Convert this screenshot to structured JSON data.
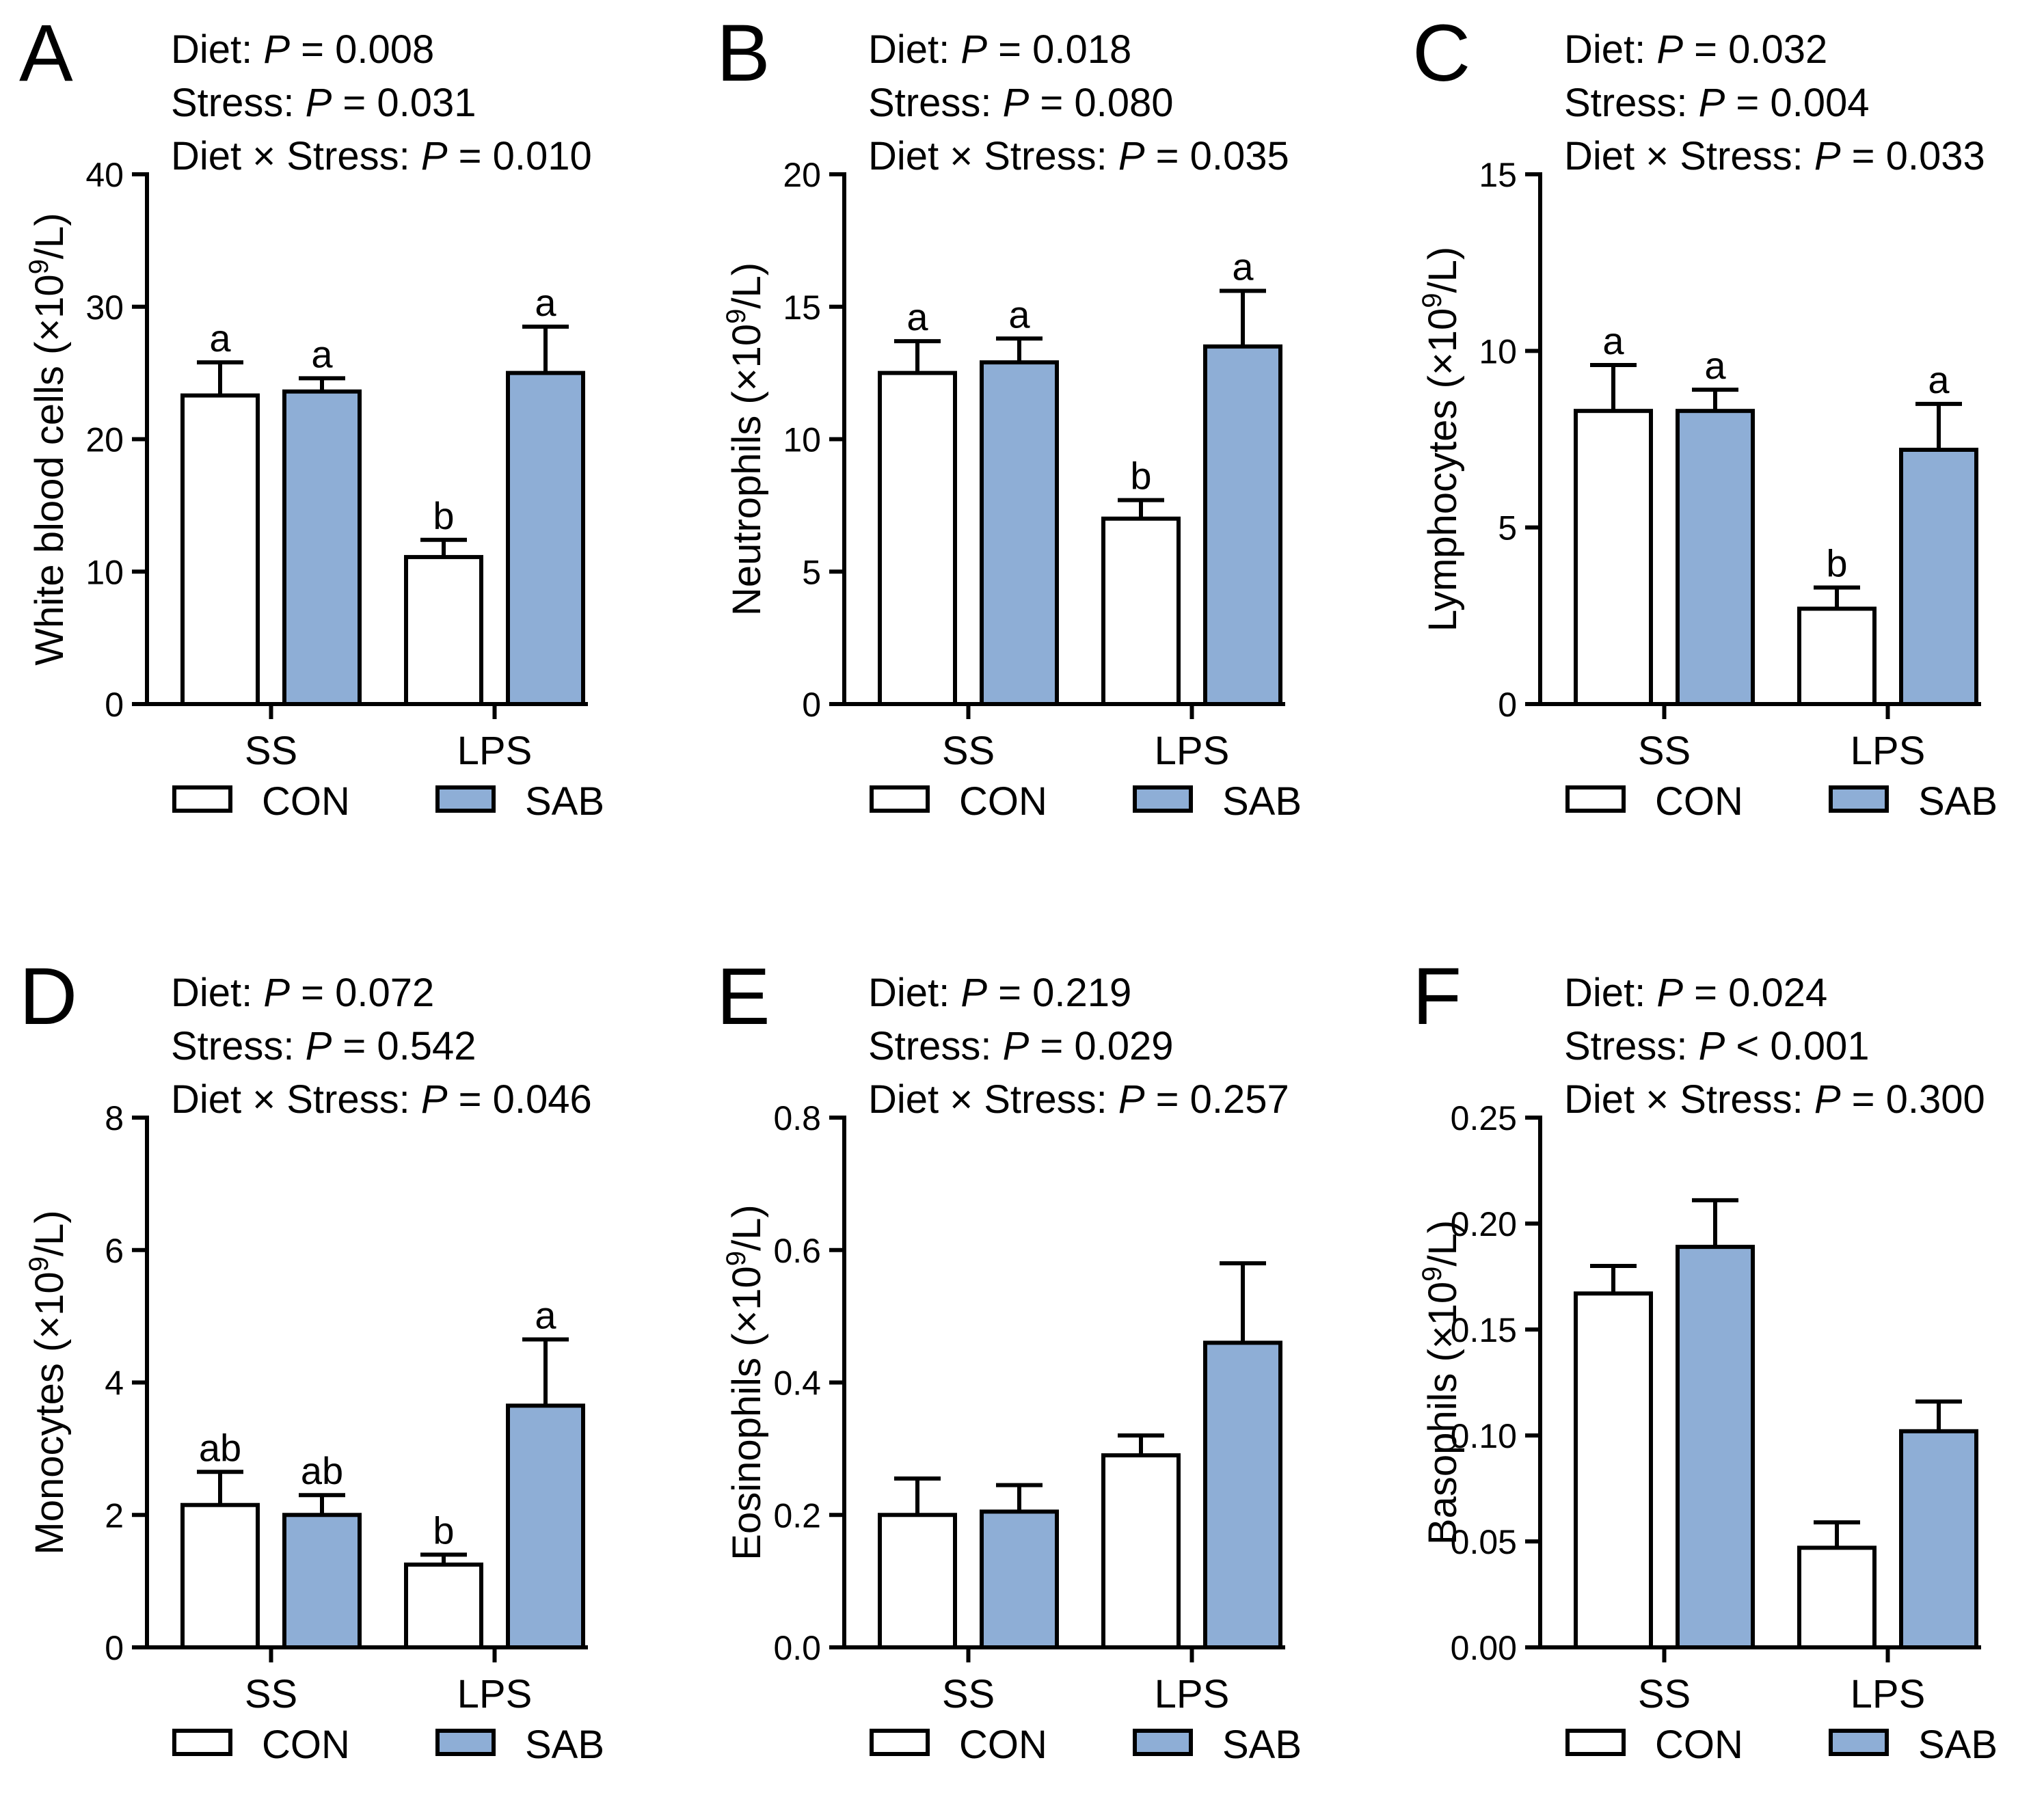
{
  "figure": {
    "legend": [
      "CON",
      "SAB"
    ],
    "colors": {
      "CON": "#ffffff",
      "SAB": "#8eaed6",
      "stroke": "#000000"
    }
  },
  "chart_data": [
    {
      "panel": "A",
      "type": "bar",
      "stats": [
        {
          "label": "Diet: ",
          "p_symbol": "P",
          "value": " = 0.008"
        },
        {
          "label": "Stress: ",
          "p_symbol": "P",
          "value": " = 0.031"
        },
        {
          "label": "Diet × Stress: ",
          "p_symbol": "P",
          "value": " = 0.010"
        }
      ],
      "ylabel": "White blood cells (×10",
      "ylabel_sup": "9",
      "ylabel_end": "/L)",
      "ylim": [
        0,
        40
      ],
      "yticks": [
        {
          "v": 0,
          "t": "0"
        },
        {
          "v": 10,
          "t": "10"
        },
        {
          "v": 20,
          "t": "20"
        },
        {
          "v": 30,
          "t": "30"
        },
        {
          "v": 40,
          "t": "40"
        }
      ],
      "categories": [
        "SS",
        "LPS"
      ],
      "series": [
        {
          "name": "CON",
          "values": [
            23.3,
            11.1
          ],
          "errors": [
            2.5,
            1.3
          ],
          "letters": [
            "a",
            "b"
          ]
        },
        {
          "name": "SAB",
          "values": [
            23.6,
            25.0
          ],
          "errors": [
            1.0,
            3.5
          ],
          "letters": [
            "a",
            "a"
          ]
        }
      ]
    },
    {
      "panel": "B",
      "type": "bar",
      "stats": [
        {
          "label": "Diet: ",
          "p_symbol": "P",
          "value": " = 0.018"
        },
        {
          "label": "Stress: ",
          "p_symbol": "P",
          "value": " = 0.080"
        },
        {
          "label": "Diet × Stress: ",
          "p_symbol": "P",
          "value": " = 0.035"
        }
      ],
      "ylabel": "Neutrophils (×10",
      "ylabel_sup": "9",
      "ylabel_end": "/L)",
      "ylim": [
        0,
        20
      ],
      "yticks": [
        {
          "v": 0,
          "t": "0"
        },
        {
          "v": 5,
          "t": "5"
        },
        {
          "v": 10,
          "t": "10"
        },
        {
          "v": 15,
          "t": "15"
        },
        {
          "v": 20,
          "t": "20"
        }
      ],
      "categories": [
        "SS",
        "LPS"
      ],
      "series": [
        {
          "name": "CON",
          "values": [
            12.5,
            7.0
          ],
          "errors": [
            1.2,
            0.7
          ],
          "letters": [
            "a",
            "b"
          ]
        },
        {
          "name": "SAB",
          "values": [
            12.9,
            13.5
          ],
          "errors": [
            0.9,
            2.1
          ],
          "letters": [
            "a",
            "a"
          ]
        }
      ]
    },
    {
      "panel": "C",
      "type": "bar",
      "stats": [
        {
          "label": "Diet: ",
          "p_symbol": "P",
          "value": " = 0.032"
        },
        {
          "label": "Stress: ",
          "p_symbol": "P",
          "value": " = 0.004"
        },
        {
          "label": "Diet × Stress: ",
          "p_symbol": "P",
          "value": " = 0.033"
        }
      ],
      "ylabel": "Lymphocytes (×10",
      "ylabel_sup": "9",
      "ylabel_end": "/L)",
      "ylim": [
        0,
        15
      ],
      "yticks": [
        {
          "v": 0,
          "t": "0"
        },
        {
          "v": 5,
          "t": "5"
        },
        {
          "v": 10,
          "t": "10"
        },
        {
          "v": 15,
          "t": "15"
        }
      ],
      "categories": [
        "SS",
        "LPS"
      ],
      "series": [
        {
          "name": "CON",
          "values": [
            8.3,
            2.7
          ],
          "errors": [
            1.3,
            0.6
          ],
          "letters": [
            "a",
            "b"
          ]
        },
        {
          "name": "SAB",
          "values": [
            8.3,
            7.2
          ],
          "errors": [
            0.6,
            1.3
          ],
          "letters": [
            "a",
            "a"
          ]
        }
      ]
    },
    {
      "panel": "D",
      "type": "bar",
      "stats": [
        {
          "label": "Diet: ",
          "p_symbol": "P",
          "value": " = 0.072"
        },
        {
          "label": "Stress: ",
          "p_symbol": "P",
          "value": " = 0.542"
        },
        {
          "label": "Diet × Stress: ",
          "p_symbol": "P",
          "value": " = 0.046"
        }
      ],
      "ylabel": "Monocytes (×10",
      "ylabel_sup": "9",
      "ylabel_end": "/L)",
      "ylim": [
        0,
        8
      ],
      "yticks": [
        {
          "v": 0,
          "t": "0"
        },
        {
          "v": 2,
          "t": "2"
        },
        {
          "v": 4,
          "t": "4"
        },
        {
          "v": 6,
          "t": "6"
        },
        {
          "v": 8,
          "t": "8"
        }
      ],
      "categories": [
        "SS",
        "LPS"
      ],
      "series": [
        {
          "name": "CON",
          "values": [
            2.15,
            1.25
          ],
          "errors": [
            0.5,
            0.15
          ],
          "letters": [
            "ab",
            "b"
          ]
        },
        {
          "name": "SAB",
          "values": [
            2.0,
            3.65
          ],
          "errors": [
            0.3,
            1.0
          ],
          "letters": [
            "ab",
            "a"
          ]
        }
      ]
    },
    {
      "panel": "E",
      "type": "bar",
      "stats": [
        {
          "label": "Diet: ",
          "p_symbol": "P",
          "value": " = 0.219"
        },
        {
          "label": "Stress: ",
          "p_symbol": "P",
          "value": " = 0.029"
        },
        {
          "label": "Diet × Stress: ",
          "p_symbol": "P",
          "value": " = 0.257"
        }
      ],
      "ylabel": "Eosinophils (×10",
      "ylabel_sup": "9",
      "ylabel_end": "/L)",
      "ylim": [
        0,
        0.8
      ],
      "yticks": [
        {
          "v": 0,
          "t": "0.0"
        },
        {
          "v": 0.2,
          "t": "0.2"
        },
        {
          "v": 0.4,
          "t": "0.4"
        },
        {
          "v": 0.6,
          "t": "0.6"
        },
        {
          "v": 0.8,
          "t": "0.8"
        }
      ],
      "categories": [
        "SS",
        "LPS"
      ],
      "series": [
        {
          "name": "CON",
          "values": [
            0.2,
            0.29
          ],
          "errors": [
            0.055,
            0.03
          ],
          "letters": [
            "",
            ""
          ]
        },
        {
          "name": "SAB",
          "values": [
            0.205,
            0.46
          ],
          "errors": [
            0.04,
            0.12
          ],
          "letters": [
            "",
            ""
          ]
        }
      ]
    },
    {
      "panel": "F",
      "type": "bar",
      "stats": [
        {
          "label": "Diet: ",
          "p_symbol": "P",
          "value": " = 0.024"
        },
        {
          "label": "Stress: ",
          "p_symbol": "P",
          "value": " < 0.001"
        },
        {
          "label": "Diet × Stress: ",
          "p_symbol": "P",
          "value": " = 0.300"
        }
      ],
      "ylabel": "Basophils (×10",
      "ylabel_sup": "9",
      "ylabel_end": "/L)",
      "ylim": [
        0,
        0.25
      ],
      "yticks": [
        {
          "v": 0,
          "t": "0.00"
        },
        {
          "v": 0.05,
          "t": "0.05"
        },
        {
          "v": 0.1,
          "t": "0.10"
        },
        {
          "v": 0.15,
          "t": "0.15"
        },
        {
          "v": 0.2,
          "t": "0.20"
        },
        {
          "v": 0.25,
          "t": "0.25"
        }
      ],
      "categories": [
        "SS",
        "LPS"
      ],
      "series": [
        {
          "name": "CON",
          "values": [
            0.167,
            0.047
          ],
          "errors": [
            0.013,
            0.012
          ],
          "letters": [
            "",
            ""
          ]
        },
        {
          "name": "SAB",
          "values": [
            0.189,
            0.102
          ],
          "errors": [
            0.022,
            0.014
          ],
          "letters": [
            "",
            ""
          ]
        }
      ]
    }
  ]
}
